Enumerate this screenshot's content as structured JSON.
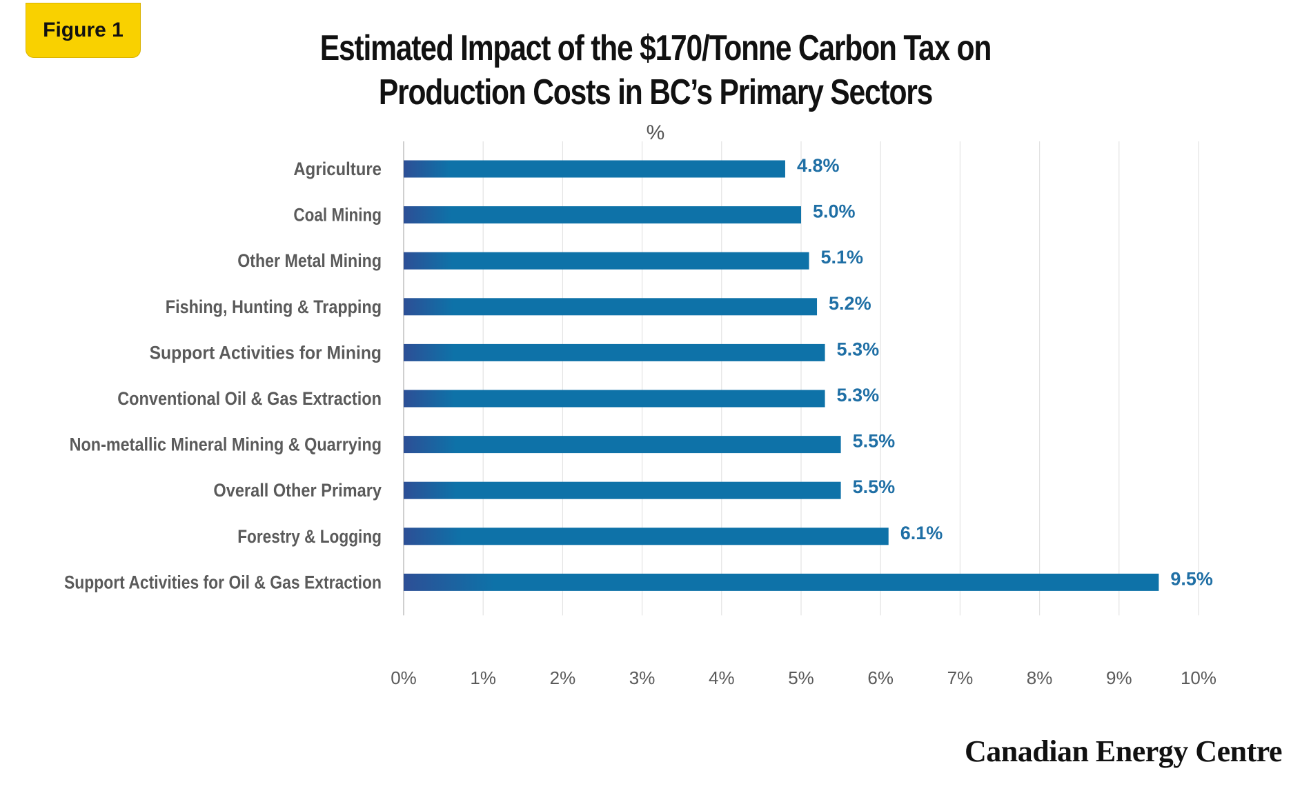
{
  "figure_badge": "Figure 1",
  "title_line1": "Estimated Impact of the $170/Tonne Carbon Tax on",
  "title_line2": "Production Costs in BC’s Primary Sectors",
  "unit_label": "%",
  "logo_text": "Canadian Energy Centre",
  "colors": {
    "bar_start": "#2d4f96",
    "bar_end": "#0e72a8",
    "value_label": "#1f6fa5",
    "badge": "#f9d100",
    "grid": "#e3e3e3"
  },
  "chart_data": {
    "type": "bar",
    "orientation": "horizontal",
    "title": "Estimated Impact of the $170/Tonne Carbon Tax on Production Costs in BC’s Primary Sectors",
    "subtitle": "%",
    "categories": [
      "Agriculture",
      "Coal Mining",
      "Other Metal Mining",
      "Fishing, Hunting & Trapping",
      "Support Activities for Mining",
      "Conventional Oil & Gas Extraction",
      "Non-metallic Mineral Mining & Quarrying",
      "Overall Other Primary",
      "Forestry & Logging",
      "Support Activities for Oil & Gas Extraction"
    ],
    "values": [
      4.8,
      5.0,
      5.1,
      5.2,
      5.3,
      5.3,
      5.5,
      5.5,
      6.1,
      9.5
    ],
    "value_labels": [
      "4.8%",
      "5.0%",
      "5.1%",
      "5.2%",
      "5.3%",
      "5.3%",
      "5.5%",
      "5.5%",
      "6.1%",
      "9.5%"
    ],
    "xlim": [
      0,
      10
    ],
    "x_ticks": [
      "0%",
      "1%",
      "2%",
      "3%",
      "4%",
      "5%",
      "6%",
      "7%",
      "8%",
      "9%",
      "10%"
    ],
    "grid": "vertical",
    "legend": "none"
  }
}
